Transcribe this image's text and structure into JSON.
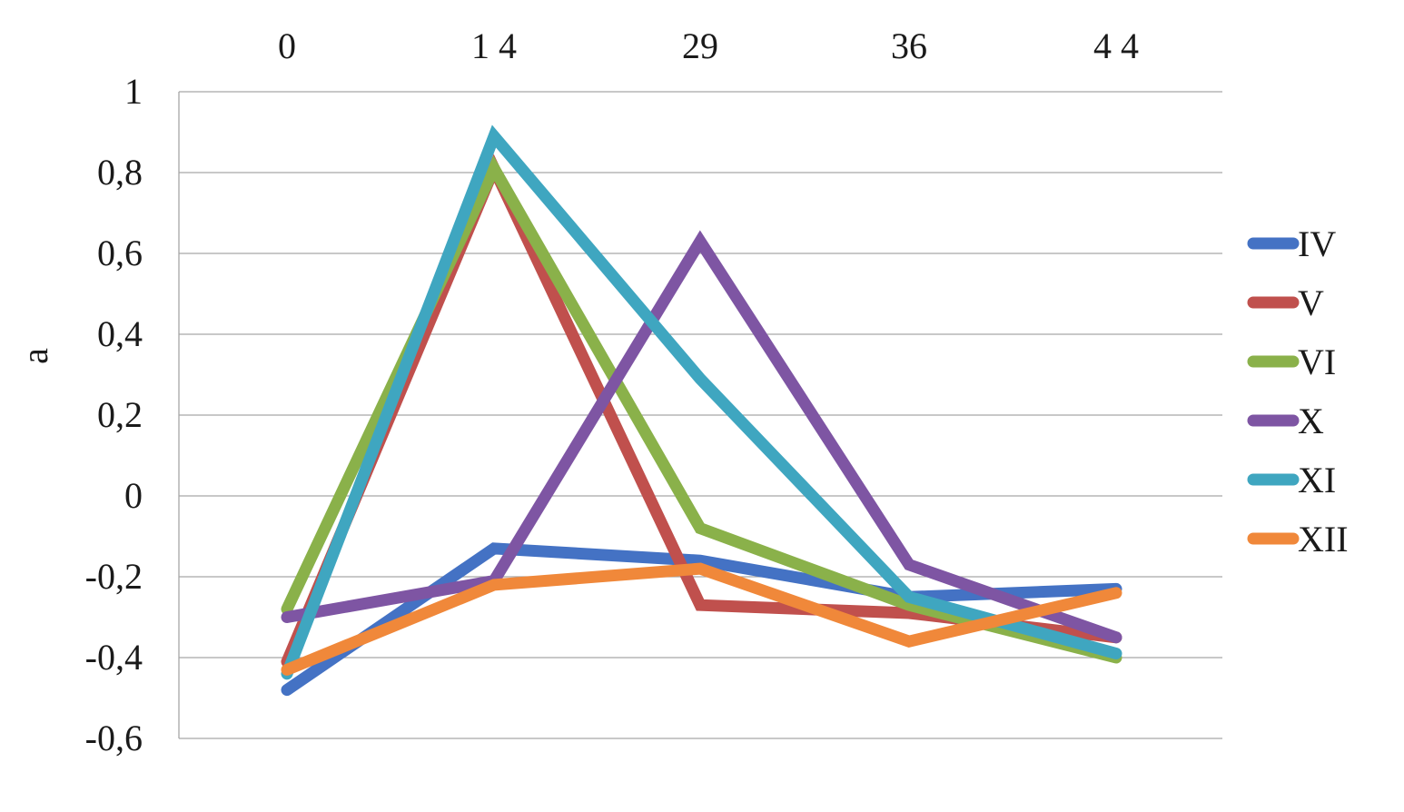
{
  "chart_data": {
    "type": "line",
    "categories": [
      "0",
      "1 4",
      "29",
      "36",
      "4 4"
    ],
    "ylabel": "a",
    "xlabel": "",
    "ylim": [
      -0.6,
      1
    ],
    "y_ticks": [
      "1",
      "0,8",
      "0,6",
      "0,4",
      "0,2",
      "0",
      "-0,2",
      "-0,4",
      "-0,6"
    ],
    "y_tick_values": [
      1,
      0.8,
      0.6,
      0.4,
      0.2,
      0,
      -0.2,
      -0.4,
      -0.6
    ],
    "x_axis_position": "top",
    "grid": "horizontal",
    "legend_position": "right",
    "series": [
      {
        "name": "IV",
        "color": "#4472C4",
        "values": [
          -0.48,
          -0.13,
          -0.16,
          -0.25,
          -0.23
        ]
      },
      {
        "name": "V",
        "color": "#C0504D",
        "values": [
          -0.41,
          0.81,
          -0.27,
          -0.29,
          -0.35
        ]
      },
      {
        "name": "VI",
        "color": "#8AB14A",
        "values": [
          -0.28,
          0.81,
          -0.08,
          -0.27,
          -0.4
        ]
      },
      {
        "name": "X",
        "color": "#7E55A3",
        "values": [
          -0.3,
          -0.21,
          0.63,
          -0.17,
          -0.35
        ]
      },
      {
        "name": "XI",
        "color": "#3FA6C0",
        "values": [
          -0.44,
          0.89,
          0.29,
          -0.25,
          -0.39
        ]
      },
      {
        "name": "XII",
        "color": "#F0883A",
        "values": [
          -0.43,
          -0.22,
          -0.18,
          -0.36,
          -0.24
        ]
      }
    ]
  }
}
